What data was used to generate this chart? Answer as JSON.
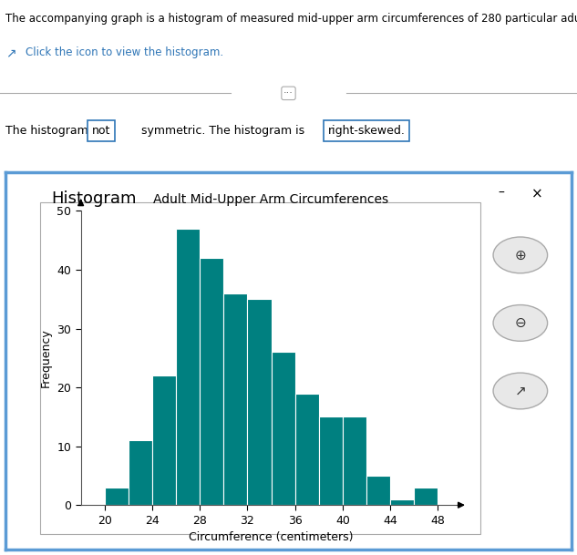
{
  "title": "Adult Mid-Upper Arm Circumferences",
  "xlabel": "Circumference (centimeters)",
  "ylabel": "Frequency",
  "bar_edges": [
    20,
    22,
    24,
    26,
    28,
    30,
    32,
    34,
    36,
    38,
    40,
    42,
    44,
    46,
    48
  ],
  "frequencies": [
    3,
    11,
    22,
    47,
    42,
    36,
    35,
    26,
    19,
    15,
    15,
    5,
    1,
    3
  ],
  "bar_color": "#008080",
  "bar_edge_color": "#ffffff",
  "ylim": [
    0,
    50
  ],
  "yticks": [
    0,
    10,
    20,
    30,
    40,
    50
  ],
  "xticks": [
    20,
    24,
    28,
    32,
    36,
    40,
    44,
    48
  ],
  "title_fontsize": 10,
  "axis_label_fontsize": 9,
  "tick_fontsize": 9,
  "panel_border_color": "#5b9bd5",
  "panel_title": "Histogram",
  "text_color_blue": "#2e75b6",
  "text_color_black": "#000000"
}
